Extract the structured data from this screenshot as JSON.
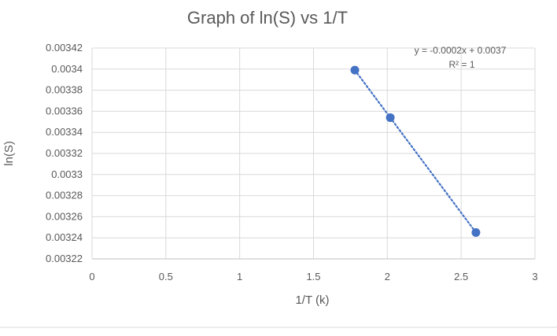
{
  "chart_data": {
    "type": "scatter",
    "title": "Graph of ln(S) vs 1/T",
    "xlabel": "1/T (k)",
    "ylabel": "ln(S)",
    "xlim": [
      0,
      3
    ],
    "ylim": [
      0.00322,
      0.00342
    ],
    "x_ticks": [
      "0",
      "0.5",
      "1",
      "1.5",
      "2",
      "2.5",
      "3"
    ],
    "y_ticks": [
      "0.00322",
      "0.00324",
      "0.00326",
      "0.00328",
      "0.0033",
      "0.00332",
      "0.00334",
      "0.00336",
      "0.00338",
      "0.0034",
      "0.00342"
    ],
    "grid": true,
    "series": [
      {
        "x": [
          1.78,
          2.02,
          2.6
        ],
        "y": [
          0.003399,
          0.003354,
          0.003245
        ],
        "color": "#4472c4",
        "trendline": {
          "style": "dotted",
          "equation": "y = -0.0002x + 0.0037",
          "r_squared": "R² = 1"
        }
      }
    ]
  }
}
